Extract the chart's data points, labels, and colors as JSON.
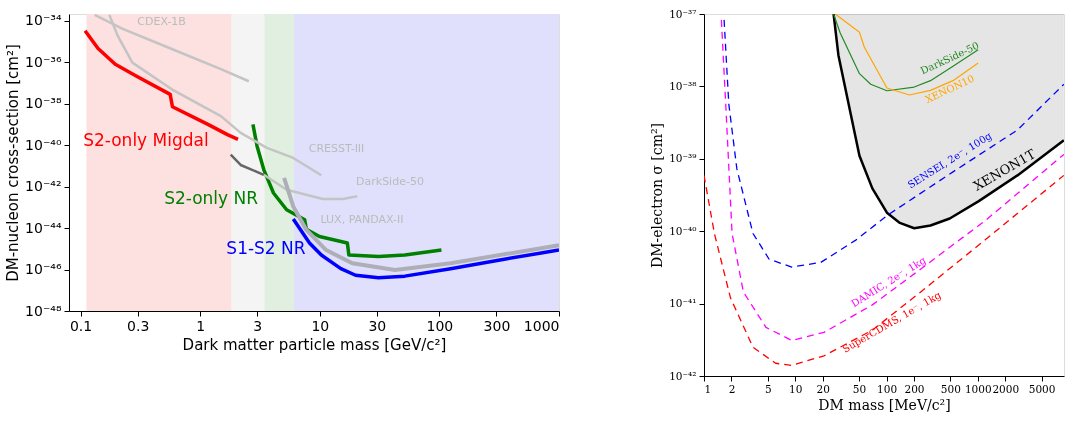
{
  "chart_data": [
    {
      "type": "line",
      "xlabel": "Dark matter particle mass [GeV/c²]",
      "ylabel": "DM-nucleon cross-section [cm²]",
      "log": "xy",
      "grid": false,
      "xlim": [
        0.08,
        1000
      ],
      "ylim": [
        1e-48,
        2.1e-34
      ],
      "xticks": [
        0.1,
        0.3,
        1,
        3,
        10,
        30,
        100,
        300,
        1000
      ],
      "yticks": [
        {
          "value": 1e-34,
          "label": "10⁻³⁴"
        },
        {
          "value": 1e-36,
          "label": "10⁻³⁶"
        },
        {
          "value": 1e-38,
          "label": "10⁻³⁸"
        },
        {
          "value": 1e-40,
          "label": "10⁻⁴⁰"
        },
        {
          "value": 1e-42,
          "label": "10⁻⁴²"
        },
        {
          "value": 1e-44,
          "label": "10⁻⁴⁴"
        },
        {
          "value": 1e-46,
          "label": "10⁻⁴⁶"
        },
        {
          "value": 1e-48,
          "label": "10⁻⁴⁸"
        }
      ],
      "bands": [
        {
          "axis": "x",
          "from": 0.112,
          "to": 1.83,
          "color": "#fde0e0"
        },
        {
          "axis": "x",
          "from": 1.83,
          "to": 3.44,
          "color": "#f4f4f4"
        },
        {
          "axis": "x",
          "from": 3.44,
          "to": 6.08,
          "color": "#e1efe1"
        },
        {
          "axis": "x",
          "from": 6.08,
          "to": 1000,
          "color": "#e0e0fc"
        }
      ],
      "series": [
        {
          "color": "#ff0000",
          "x": [
            0.109,
            0.14,
            0.195,
            0.289,
            0.561,
            0.586,
            1.16,
            1.69,
            2.07
          ],
          "values": [
            3.3e-35,
            4.6e-36,
            7.9e-37,
            2.2e-37,
            2.8e-38,
            7.1e-39,
            1e-39,
            3.2e-40,
            1.9e-40
          ]
        },
        {
          "color": "#008000",
          "x": [
            2.76,
            2.99,
            3.4,
            4.1,
            5.28,
            7.48,
            7.72,
            9.94,
            17.0,
            17.5,
            31,
            51.4,
            104
          ],
          "values": [
            1e-39,
            8.9e-41,
            6.6e-42,
            4.9e-43,
            7.6e-44,
            2.5e-44,
            8.8e-45,
            3.9e-45,
            1.9e-45,
            5e-46,
            4.2e-46,
            5e-46,
            8.7e-46
          ]
        },
        {
          "color": "#0000ff",
          "x": [
            6.0,
            8.2,
            10.3,
            15.0,
            19.9,
            31,
            51.4,
            124,
            321,
            1000
          ],
          "values": [
            2.7e-44,
            1.9e-45,
            5e-46,
            1.1e-46,
            5.3e-47,
            4e-47,
            4.8e-47,
            1.1e-46,
            2.9e-46,
            8.7e-46
          ]
        },
        {
          "color": "#c4c4c4",
          "x": [
            0.131,
            0.225,
            0.579,
            1.49,
            2.55
          ],
          "values": [
            1.9e-34,
            4e-35,
            4.3e-36,
            4.6e-37,
            1.2e-37
          ]
        },
        {
          "color": "#c4c4c4",
          "x": [
            0.174,
            0.204,
            0.271,
            0.579,
            1.49,
            2.18,
            3.61,
            6.0,
            10.3
          ],
          "values": [
            1.9e-34,
            1.9e-35,
            9.5e-37,
            4.9e-38,
            2.5e-39,
            3.9e-40,
            7.4e-41,
            2.4e-41,
            3.5e-42
          ]
        },
        {
          "color": "#c4c4c4",
          "x": [
            3.4,
            5.28,
            10.6,
            15.5,
            20.6
          ],
          "values": [
            3.7e-42,
            7e-43,
            2.5e-43,
            2.5e-43,
            3.4e-43
          ]
        },
        {
          "color": "#666666",
          "x": [
            1.8,
            2.18,
            3.4
          ],
          "values": [
            3.5e-41,
            1.1e-41,
            3.7e-42
          ]
        },
        {
          "color": "#aeaeb8",
          "x": [
            5.03,
            6.0,
            7.72,
            11.3,
            18.7,
            42.5,
            124,
            1000
          ],
          "values": [
            2.6e-42,
            1.1e-43,
            8.1e-45,
            8.7e-46,
            2e-46,
            9.4e-47,
            2e-46,
            1.5e-45
          ]
        }
      ],
      "annotations": [
        "S2-only Migdal",
        "S2-only NR",
        "S1-S2 NR",
        "CDEX-1B",
        "CRESST-III",
        "DarkSide-50",
        "LUX, PANDAX-II"
      ]
    },
    {
      "type": "line",
      "xlabel": "DM mass [MeV/c²]",
      "ylabel": "DM-electron σ [cm²]",
      "log": "xy",
      "grid": false,
      "xlim": [
        1,
        8800
      ],
      "ylim": [
        1e-42,
        1e-37
      ],
      "xticks": [
        1,
        2,
        5,
        10,
        20,
        50,
        100,
        200,
        500,
        1000,
        2000,
        5000
      ],
      "yticks": [
        {
          "value": 1e-37,
          "label": "10⁻³⁷"
        },
        {
          "value": 1e-38,
          "label": "10⁻³⁸"
        },
        {
          "value": 1e-39,
          "label": "10⁻³⁹"
        },
        {
          "value": 1e-40,
          "label": "10⁻⁴⁰"
        },
        {
          "value": 1e-41,
          "label": "10⁻⁴¹"
        },
        {
          "value": 1e-42,
          "label": "10⁻⁴²"
        }
      ],
      "series": [
        {
          "color": "#000000",
          "x": [
            26.3,
            29.7,
            50.5,
            69.9,
            101,
            140,
            201,
            303,
            493,
            1025,
            2720,
            8770
          ],
          "values": [
            1e-37,
            2.7e-38,
            1.1e-39,
            3.9e-40,
            1.8e-40,
            1.3e-40,
            1.1e-40,
            1.2e-40,
            1.5e-40,
            2.6e-40,
            5.9e-40,
            1.8e-39
          ],
          "lower": [
            1e-37,
            2.7e-38,
            1.1e-39,
            3.9e-40,
            1.8e-40,
            1.3e-40,
            1.1e-40,
            1.2e-40,
            1.5e-40,
            2.6e-40,
            5.9e-40,
            1.8e-39
          ],
          "upper": [
            1e-37,
            1e-37,
            1e-37,
            1e-37,
            1e-37,
            1e-37,
            1e-37,
            1e-37,
            1e-37,
            1e-37,
            1e-37,
            1e-37
          ]
        },
        {
          "color": "#228b22",
          "x": [
            26.3,
            31,
            50.5,
            67.1,
            101,
            201,
            303,
            535,
            1009
          ],
          "values": [
            1e-37,
            5.5e-38,
            1.5e-38,
            1.07e-38,
            8.7e-39,
            9.8e-39,
            1.2e-38,
            1.9e-38,
            3.2e-38
          ]
        },
        {
          "color": "#ffa500",
          "x": [
            27.4,
            50.5,
            57.0,
            101,
            178,
            303,
            535,
            1009
          ],
          "values": [
            1e-37,
            5.6e-38,
            3.5e-38,
            9.5e-39,
            7.6e-39,
            8.8e-39,
            1.2e-38,
            2.1e-38
          ]
        },
        {
          "color": "#0000ff",
          "line_style": "dashed",
          "x": [
            1.66,
            1.87,
            2.29,
            3.44,
            5.17,
            9.15,
            19.0,
            46.5,
            105,
            535,
            2720,
            8770
          ],
          "values": [
            8.3e-38,
            5.7e-39,
            7.3e-40,
            9.3e-41,
            4.1e-41,
            3.2e-41,
            3.7e-41,
            7.6e-41,
            1.7e-40,
            6.6e-40,
            2.5e-39,
            1.07e-38
          ]
        },
        {
          "color": "#ff00ff",
          "line_style": "dashed",
          "x": [
            1.55,
            1.73,
            2.03,
            2.7,
            4.77,
            9.15,
            20.6,
            69.9,
            237,
            1206,
            8770
          ],
          "values": [
            8.3e-38,
            5.7e-39,
            9.3e-41,
            1.45e-41,
            4.7e-42,
            3.1e-42,
            4e-42,
            9.6e-42,
            3e-41,
            1.4e-40,
            1.15e-39
          ]
        },
        {
          "color": "#ff0000",
          "line_style": "dashed",
          "x": [
            1,
            1.3,
            1.95,
            3.44,
            6.09,
            9.15,
            20.6,
            69.9,
            237,
            1206,
            8770
          ],
          "values": [
            5.9e-40,
            9.3e-41,
            1.2e-41,
            2.5e-42,
            1.5e-42,
            1.4e-42,
            1.9e-42,
            4.3e-42,
            1.45e-41,
            7.6e-41,
            5.9e-40
          ]
        }
      ],
      "annotations": [
        "DarkSide-50",
        "XENON10",
        "SENSEI, 2e⁻, 100g",
        "XENON1T",
        "DAMIC, 2e⁻, 1kg",
        "SuperCDMS, 1e⁻, 1kg"
      ]
    }
  ]
}
